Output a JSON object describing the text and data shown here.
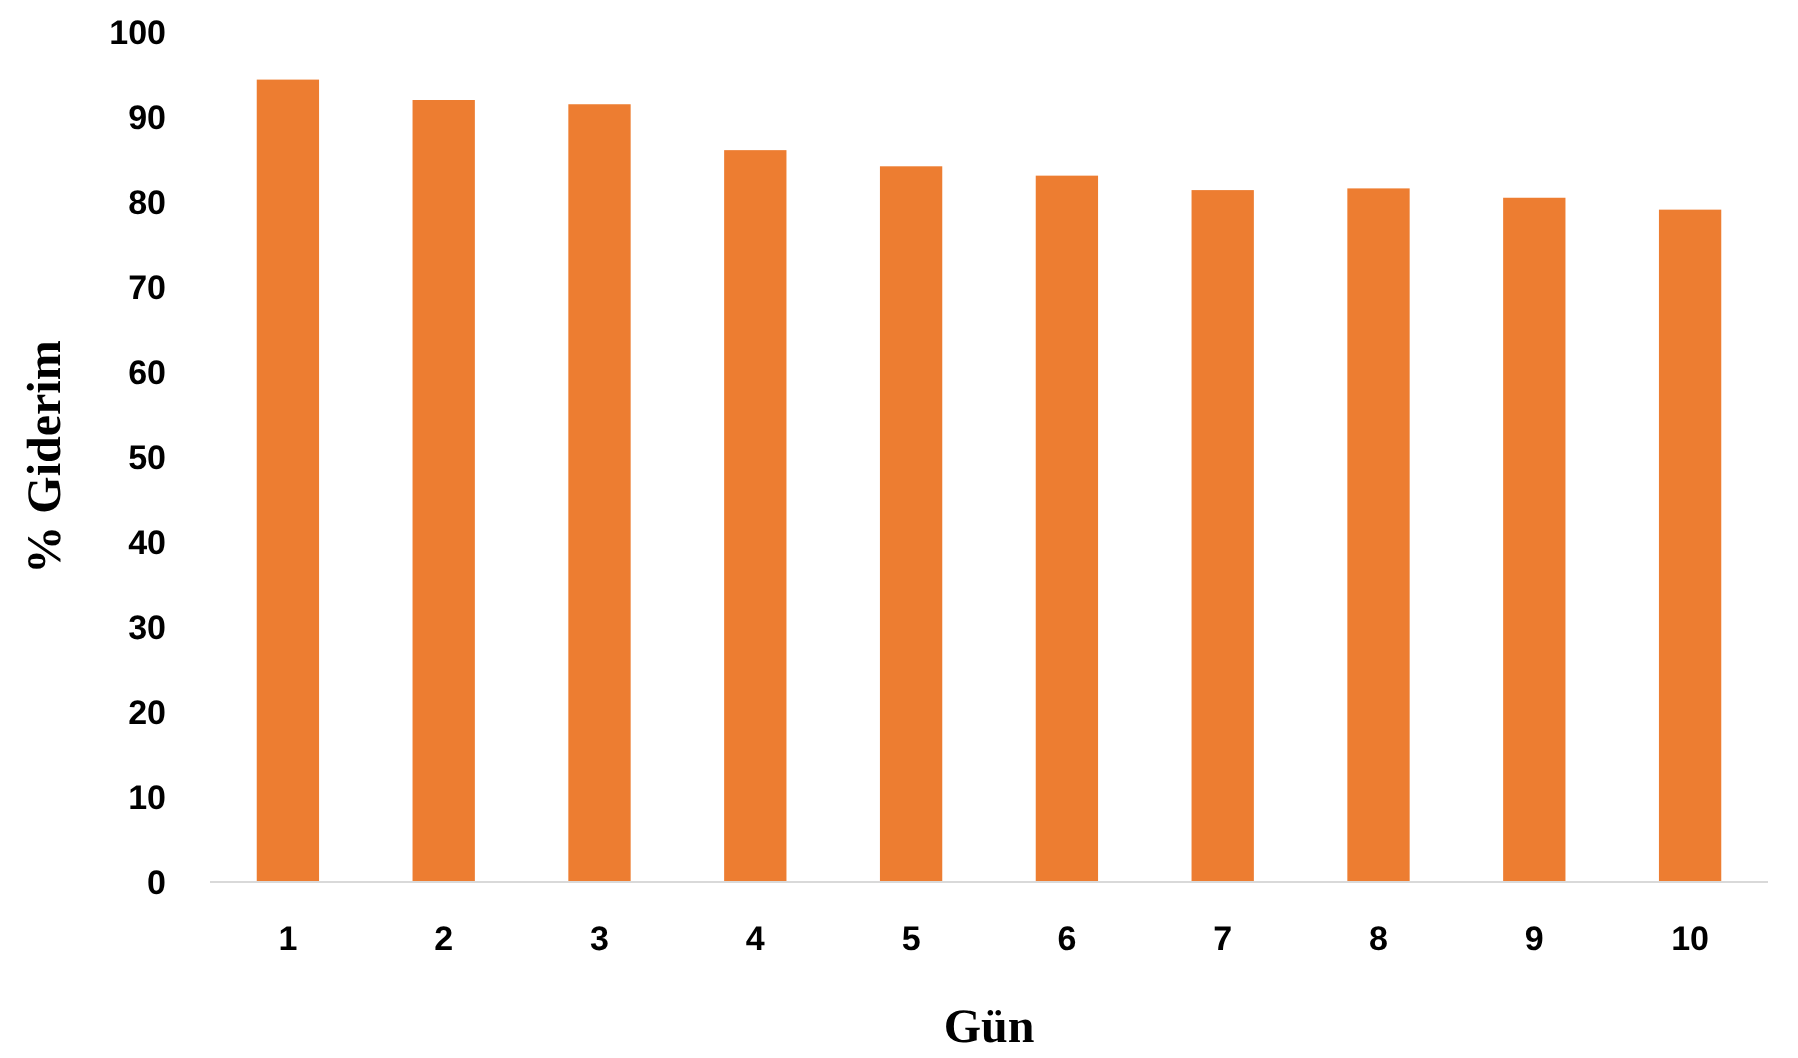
{
  "chart_data": {
    "type": "bar",
    "xlabel": "Gün",
    "ylabel": "% Giderim",
    "categories": [
      "1",
      "2",
      "3",
      "4",
      "5",
      "6",
      "7",
      "8",
      "9",
      "10"
    ],
    "values": [
      94.4,
      92.0,
      91.5,
      86.1,
      84.2,
      83.1,
      81.4,
      81.6,
      80.5,
      79.1
    ],
    "color": "#ed7d31",
    "ylim": [
      0,
      100
    ],
    "yticks": [
      0,
      10,
      20,
      30,
      40,
      50,
      60,
      70,
      80,
      90,
      100
    ],
    "grid": false
  }
}
